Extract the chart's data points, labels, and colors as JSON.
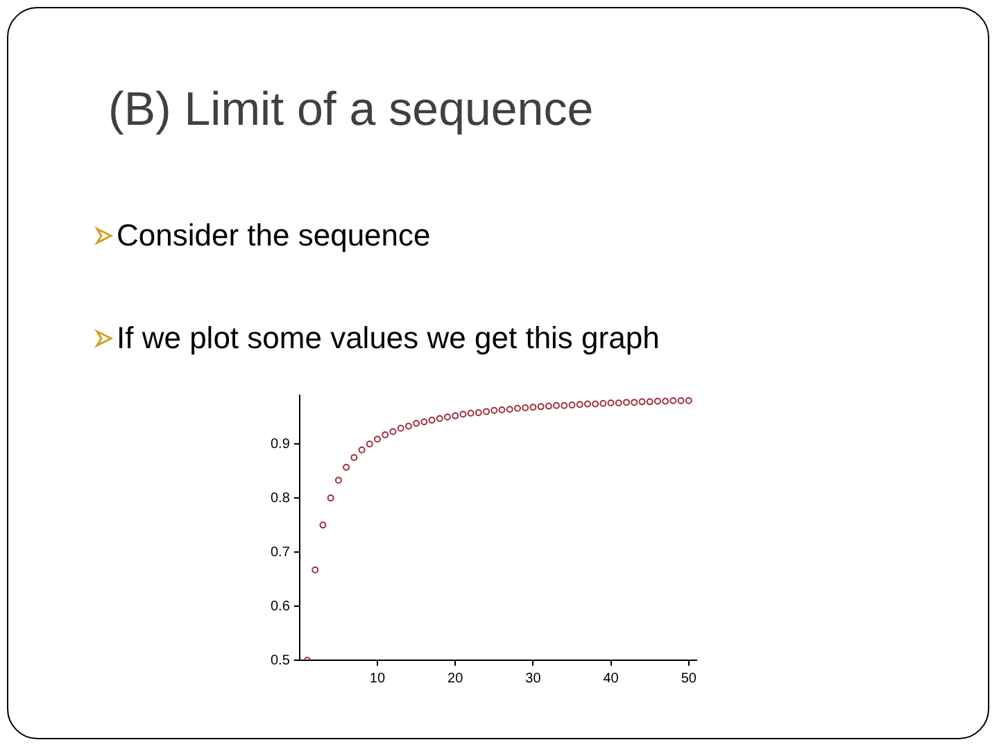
{
  "chart_data": {
    "type": "scatter",
    "title": "(B) Limit of a sequence",
    "annotations": [
      "Consider the sequence",
      "If we plot some values we get this graph"
    ],
    "x": [
      1,
      2,
      3,
      4,
      5,
      6,
      7,
      8,
      9,
      10,
      11,
      12,
      13,
      14,
      15,
      16,
      17,
      18,
      19,
      20,
      21,
      22,
      23,
      24,
      25,
      26,
      27,
      28,
      29,
      30,
      31,
      32,
      33,
      34,
      35,
      36,
      37,
      38,
      39,
      40,
      41,
      42,
      43,
      44,
      45,
      46,
      47,
      48,
      49,
      50
    ],
    "series": [
      {
        "color": "#a03040",
        "values": [
          0.5,
          0.667,
          0.75,
          0.8,
          0.833,
          0.857,
          0.875,
          0.889,
          0.9,
          0.909,
          0.917,
          0.923,
          0.929,
          0.933,
          0.938,
          0.941,
          0.944,
          0.947,
          0.95,
          0.952,
          0.955,
          0.957,
          0.958,
          0.96,
          0.962,
          0.963,
          0.964,
          0.966,
          0.967,
          0.968,
          0.969,
          0.97,
          0.971,
          0.971,
          0.972,
          0.973,
          0.974,
          0.974,
          0.975,
          0.976,
          0.976,
          0.977,
          0.977,
          0.978,
          0.978,
          0.979,
          0.979,
          0.98,
          0.98,
          0.98
        ]
      }
    ],
    "xlim": [
      0,
      51
    ],
    "xticks": [
      10,
      20,
      30,
      40,
      50
    ],
    "ylim": [
      0.5,
      0.99
    ],
    "yticks": [
      0.5,
      0.6,
      0.7,
      0.8,
      0.9
    ],
    "marker": "circle",
    "grid": false,
    "legend": false
  }
}
